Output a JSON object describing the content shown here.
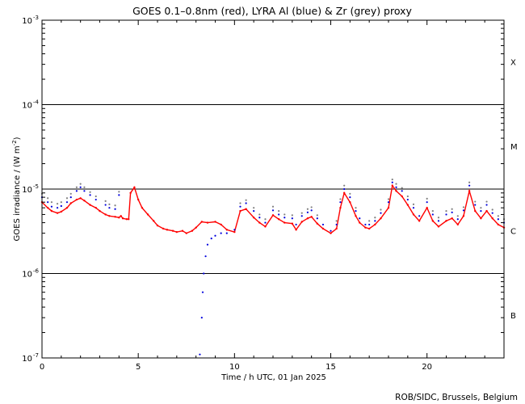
{
  "chart_data": {
    "type": "scatter",
    "title": "GOES 0.1–0.8nm (red), LYRA Al (blue) & Zr (grey) proxy",
    "xlabel": "Time / h UTC, 01 Jan 2025",
    "ylabel": "GOES irradiance / (W m",
    "ylabel_sup": "-2",
    "ylabel_close": ")",
    "credit": "ROB/SIDC, Brussels, Belgium",
    "xlim": [
      0,
      24
    ],
    "ylim": [
      1e-07,
      0.001
    ],
    "yscale": "log",
    "x_ticks": [
      {
        "value": 0,
        "label": "0"
      },
      {
        "value": 5,
        "label": "5"
      },
      {
        "value": 10,
        "label": "10"
      },
      {
        "value": 15,
        "label": "15"
      },
      {
        "value": 20,
        "label": "20"
      }
    ],
    "y_ticks": [
      {
        "value": 1e-07,
        "base": "10",
        "exp": "-7"
      },
      {
        "value": 1e-06,
        "base": "10",
        "exp": "-6"
      },
      {
        "value": 1e-05,
        "base": "10",
        "exp": "-5"
      },
      {
        "value": 0.0001,
        "base": "10",
        "exp": "-4"
      },
      {
        "value": 0.001,
        "base": "10",
        "exp": "-3"
      }
    ],
    "threshold_lines": [
      1e-06,
      1e-05,
      0.0001
    ],
    "flare_classes": [
      {
        "label": "X",
        "y": 0.00032
      },
      {
        "label": "M",
        "y": 3.2e-05
      },
      {
        "label": "C",
        "y": 3.2e-06
      },
      {
        "label": "B",
        "y": 3.2e-07
      }
    ],
    "series": [
      {
        "color": "#ff0000",
        "mode": "line",
        "x": [
          0,
          0.3,
          0.5,
          0.8,
          1.0,
          1.3,
          1.5,
          1.8,
          2.0,
          2.2,
          2.5,
          2.8,
          3.0,
          3.3,
          3.5,
          3.8,
          4.0,
          4.1,
          4.2,
          4.4,
          4.5,
          4.6,
          4.8,
          5.0,
          5.2,
          5.5,
          5.8,
          6.0,
          6.3,
          6.5,
          6.8,
          7.0,
          7.3,
          7.5,
          7.8,
          8.0,
          8.3,
          8.6,
          9.0,
          9.3,
          9.6,
          10.0,
          10.3,
          10.6,
          11.0,
          11.3,
          11.6,
          12.0,
          12.3,
          12.6,
          13.0,
          13.2,
          13.5,
          13.8,
          14.0,
          14.3,
          14.6,
          15.0,
          15.3,
          15.5,
          15.7,
          16.0,
          16.3,
          16.5,
          16.8,
          17.0,
          17.3,
          17.6,
          18.0,
          18.2,
          18.4,
          18.7,
          19.0,
          19.3,
          19.6,
          20.0,
          20.3,
          20.6,
          21.0,
          21.3,
          21.6,
          21.9,
          22.2,
          22.5,
          22.8,
          23.1,
          23.4,
          23.7,
          24.0
        ],
        "y": [
          7e-06,
          6e-06,
          5.5e-06,
          5.2e-06,
          5.4e-06,
          6e-06,
          6.8e-06,
          7.5e-06,
          7.8e-06,
          7.3e-06,
          6.5e-06,
          6e-06,
          5.5e-06,
          5e-06,
          4.8e-06,
          4.7e-06,
          4.6e-06,
          4.8e-06,
          4.5e-06,
          4.4e-06,
          4.4e-06,
          9e-06,
          1.05e-05,
          7.5e-06,
          6e-06,
          5e-06,
          4.2e-06,
          3.7e-06,
          3.4e-06,
          3.3e-06,
          3.2e-06,
          3.1e-06,
          3.2e-06,
          3e-06,
          3.2e-06,
          3.5e-06,
          4.1e-06,
          4e-06,
          4.1e-06,
          3.8e-06,
          3.3e-06,
          3.1e-06,
          5.5e-06,
          5.8e-06,
          4.6e-06,
          4e-06,
          3.6e-06,
          4.9e-06,
          4.4e-06,
          4e-06,
          3.9e-06,
          3.3e-06,
          4.1e-06,
          4.5e-06,
          4.7e-06,
          3.9e-06,
          3.4e-06,
          3e-06,
          3.4e-06,
          6e-06,
          9e-06,
          7e-06,
          4.8e-06,
          4e-06,
          3.5e-06,
          3.4e-06,
          3.8e-06,
          4.5e-06,
          6e-06,
          1.1e-05,
          9.5e-06,
          8.2e-06,
          6.5e-06,
          5e-06,
          4.2e-06,
          6e-06,
          4.2e-06,
          3.6e-06,
          4.2e-06,
          4.5e-06,
          3.8e-06,
          4.8e-06,
          9.5e-06,
          5.5e-06,
          4.5e-06,
          5.5e-06,
          4.5e-06,
          3.8e-06,
          3.5e-06
        ]
      },
      {
        "color": "#0000dd",
        "mode": "points",
        "x": [
          0,
          0.3,
          0.5,
          0.8,
          1.0,
          1.3,
          1.5,
          1.8,
          2.0,
          2.2,
          2.5,
          2.8,
          3.3,
          3.5,
          3.8,
          4.0,
          8.2,
          8.3,
          8.35,
          8.4,
          8.5,
          8.6,
          8.8,
          9.0,
          9.3,
          9.6,
          10.0,
          10.3,
          10.6,
          11.0,
          11.3,
          11.6,
          12.0,
          12.3,
          12.6,
          13.0,
          13.2,
          13.5,
          13.8,
          14.0,
          14.3,
          14.6,
          15.0,
          15.3,
          15.5,
          15.7,
          16.0,
          16.3,
          16.5,
          16.8,
          17.0,
          17.3,
          17.6,
          18.0,
          18.2,
          18.4,
          18.7,
          19.0,
          19.3,
          19.6,
          20.0,
          20.3,
          20.6,
          21.0,
          21.3,
          21.6,
          21.9,
          22.2,
          22.5,
          22.8,
          23.1,
          23.4,
          23.7,
          24.0
        ],
        "y": [
          8e-06,
          7e-06,
          6.2e-06,
          6e-06,
          6.3e-06,
          7e-06,
          8e-06,
          9.5e-06,
          1.05e-05,
          9.5e-06,
          8.5e-06,
          7.5e-06,
          6.5e-06,
          6e-06,
          5.8e-06,
          8.5e-06,
          1.1e-07,
          3e-07,
          6e-07,
          1e-06,
          1.6e-06,
          2.2e-06,
          2.6e-06,
          2.8e-06,
          3e-06,
          3e-06,
          3.3e-06,
          6.2e-06,
          6.8e-06,
          5.5e-06,
          4.6e-06,
          4e-06,
          5.6e-06,
          5e-06,
          4.6e-06,
          4.5e-06,
          3.8e-06,
          4.8e-06,
          5.3e-06,
          5.6e-06,
          4.5e-06,
          3.8e-06,
          3.2e-06,
          3.8e-06,
          7e-06,
          1e-05,
          8e-06,
          5.5e-06,
          4.5e-06,
          3.8e-06,
          3.8e-06,
          4.2e-06,
          5.2e-06,
          7e-06,
          1.2e-05,
          1.05e-05,
          9.5e-06,
          7.5e-06,
          6e-06,
          4.8e-06,
          7e-06,
          5e-06,
          4.2e-06,
          5e-06,
          5.3e-06,
          4.4e-06,
          5.6e-06,
          1.1e-05,
          6.5e-06,
          5.5e-06,
          6.5e-06,
          5.2e-06,
          4.4e-06,
          4e-06
        ]
      },
      {
        "color": "#808080",
        "mode": "points",
        "x": [
          0,
          0.3,
          0.5,
          0.8,
          1.0,
          1.3,
          1.5,
          1.8,
          2.0,
          2.2,
          2.5,
          2.8,
          3.3,
          3.5,
          3.8,
          4.0,
          10.3,
          10.6,
          11.0,
          11.3,
          11.6,
          12.0,
          12.3,
          12.6,
          13.0,
          13.5,
          13.8,
          14.0,
          14.3,
          15.3,
          15.5,
          15.7,
          16.0,
          16.3,
          17.0,
          17.3,
          17.6,
          18.0,
          18.2,
          18.4,
          18.7,
          19.0,
          19.3,
          20.0,
          20.3,
          20.6,
          21.0,
          21.3,
          21.6,
          21.9,
          22.2,
          22.5,
          22.8,
          23.1,
          23.4,
          23.7,
          24.0
        ],
        "y": [
          8.8e-06,
          7.8e-06,
          7e-06,
          6.7e-06,
          7e-06,
          7.8e-06,
          8.8e-06,
          1.05e-05,
          1.15e-05,
          1.05e-05,
          9.2e-06,
          8.2e-06,
          7.2e-06,
          6.6e-06,
          6.4e-06,
          9.3e-06,
          6.8e-06,
          7.4e-06,
          6e-06,
          5e-06,
          4.4e-06,
          6.2e-06,
          5.5e-06,
          5e-06,
          4.9e-06,
          5.2e-06,
          5.8e-06,
          6.1e-06,
          4.9e-06,
          4.2e-06,
          7.6e-06,
          1.1e-05,
          8.8e-06,
          6e-06,
          4.2e-06,
          4.6e-06,
          5.7e-06,
          7.6e-06,
          1.3e-05,
          1.15e-05,
          1.03e-05,
          8.2e-06,
          6.6e-06,
          7.7e-06,
          5.5e-06,
          4.6e-06,
          5.5e-06,
          5.8e-06,
          4.8e-06,
          6.1e-06,
          1.2e-05,
          7.1e-06,
          6e-06,
          7.1e-06,
          5.7e-06,
          4.8e-06,
          4.4e-06
        ]
      }
    ]
  }
}
